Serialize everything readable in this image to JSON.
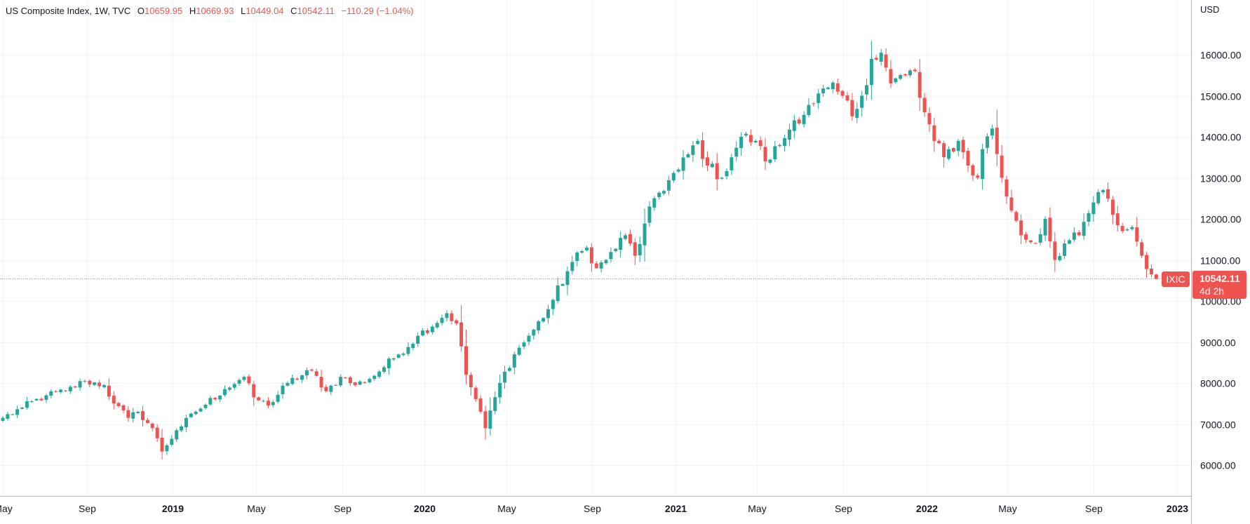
{
  "legend": {
    "symbol": "US Composite Index, 1W, TVC",
    "o_label": "O",
    "open": "10659.95",
    "h_label": "H",
    "high": "10669.93",
    "l_label": "L",
    "low": "10449.04",
    "c_label": "C",
    "close": "10542.11",
    "change": "−110.29 (−1.04%)"
  },
  "price_scale": {
    "currency": "USD"
  },
  "last_price": {
    "ticker": "IXIC",
    "price": "10542.11",
    "countdown": "4d 2h"
  },
  "colors": {
    "up": "#26a69a",
    "down": "#ef5350",
    "grid": "#f0f3fa",
    "axis_text": "#131722",
    "axis_line": "#787b86"
  },
  "chart_data": {
    "type": "candlestick",
    "title": "US Composite Index, 1W, TVC",
    "timeframe": "1W",
    "ylabel": "USD",
    "ylim": [
      5250,
      16750
    ],
    "y_ticks": [
      6000,
      7000,
      8000,
      9000,
      10000,
      11000,
      12000,
      13000,
      14000,
      15000,
      16000
    ],
    "y_tick_labels": [
      "6000.00",
      "7000.00",
      "8000.00",
      "9000.00",
      "10000.00",
      "11000.00",
      "12000.00",
      "13000.00",
      "14000.00",
      "15000.00",
      "16000.00"
    ],
    "x_start": "2018-04-30",
    "x_ticks": [
      "May",
      "Sep",
      "2019",
      "May",
      "Sep",
      "2020",
      "May",
      "Sep",
      "2021",
      "May",
      "Sep",
      "2022",
      "May",
      "Sep",
      "2023"
    ],
    "x_tick_weeks": [
      0,
      17.5,
      35.2,
      52.5,
      70.3,
      87.4,
      104.4,
      122.1,
      139.4,
      156.3,
      174.1,
      191.4,
      208.2,
      226.0,
      243.3
    ],
    "x_tick_major": [
      false,
      false,
      true,
      false,
      false,
      true,
      false,
      false,
      true,
      false,
      false,
      true,
      false,
      false,
      true
    ],
    "last_close": 10542.11,
    "anchors": [
      [
        0,
        7150
      ],
      [
        4,
        7400
      ],
      [
        9,
        7700
      ],
      [
        13,
        7800
      ],
      [
        17,
        8050
      ],
      [
        21,
        7950
      ],
      [
        23,
        7500
      ],
      [
        26,
        7150
      ],
      [
        28,
        7300
      ],
      [
        31,
        6900
      ],
      [
        33,
        6330
      ],
      [
        36,
        6850
      ],
      [
        40,
        7300
      ],
      [
        46,
        7850
      ],
      [
        50,
        8150
      ],
      [
        52,
        7650
      ],
      [
        55,
        7450
      ],
      [
        59,
        8000
      ],
      [
        64,
        8300
      ],
      [
        67,
        7800
      ],
      [
        70,
        8150
      ],
      [
        73,
        7950
      ],
      [
        76,
        8100
      ],
      [
        81,
        8600
      ],
      [
        86,
        9150
      ],
      [
        92,
        9700
      ],
      [
        94,
        9450
      ],
      [
        96,
        8200
      ],
      [
        99,
        7300
      ],
      [
        100,
        6900
      ],
      [
        103,
        8000
      ],
      [
        106,
        8700
      ],
      [
        110,
        9300
      ],
      [
        113,
        9800
      ],
      [
        118,
        10950
      ],
      [
        121,
        11300
      ],
      [
        123,
        10800
      ],
      [
        125,
        11000
      ],
      [
        129,
        11600
      ],
      [
        131,
        11100
      ],
      [
        135,
        12500
      ],
      [
        140,
        13200
      ],
      [
        144,
        13900
      ],
      [
        146,
        13300
      ],
      [
        149,
        13000
      ],
      [
        151,
        13500
      ],
      [
        153,
        14000
      ],
      [
        156,
        13900
      ],
      [
        158,
        13400
      ],
      [
        161,
        13800
      ],
      [
        164,
        14400
      ],
      [
        168,
        14800
      ],
      [
        171,
        15200
      ],
      [
        174,
        15000
      ],
      [
        176,
        14500
      ],
      [
        178,
        15000
      ],
      [
        180,
        15900
      ],
      [
        182,
        16050
      ],
      [
        184,
        15300
      ],
      [
        187,
        15500
      ],
      [
        189,
        15600
      ],
      [
        190,
        14950
      ],
      [
        193,
        13900
      ],
      [
        195,
        13500
      ],
      [
        198,
        13900
      ],
      [
        200,
        13300
      ],
      [
        202,
        13000
      ],
      [
        203,
        13700
      ],
      [
        205,
        14200
      ],
      [
        207,
        13000
      ],
      [
        209,
        12200
      ],
      [
        211,
        11600
      ],
      [
        214,
        11400
      ],
      [
        216,
        12000
      ],
      [
        218,
        11000
      ],
      [
        220,
        11400
      ],
      [
        223,
        11600
      ],
      [
        226,
        12400
      ],
      [
        228,
        12700
      ],
      [
        230,
        12100
      ],
      [
        232,
        11700
      ],
      [
        234,
        11800
      ],
      [
        236,
        11100
      ],
      [
        238,
        10650
      ],
      [
        239,
        10542.11
      ]
    ]
  }
}
